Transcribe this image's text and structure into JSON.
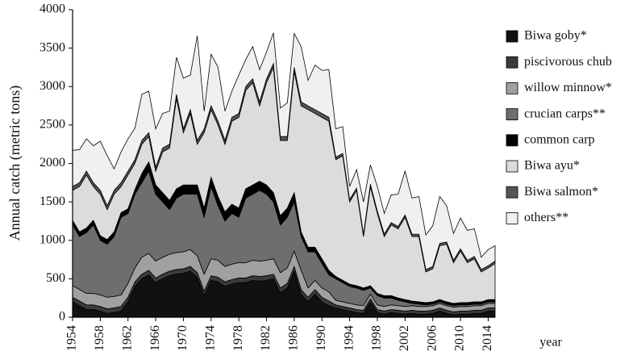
{
  "chart_data": {
    "type": "stacked-area",
    "y_label": "Annual catch (metric tons)",
    "x_label": "year",
    "x": [
      1954,
      1955,
      1956,
      1957,
      1958,
      1959,
      1960,
      1961,
      1962,
      1963,
      1964,
      1965,
      1966,
      1967,
      1968,
      1969,
      1970,
      1971,
      1972,
      1973,
      1974,
      1975,
      1976,
      1977,
      1978,
      1979,
      1980,
      1981,
      1982,
      1983,
      1984,
      1985,
      1986,
      1987,
      1988,
      1989,
      1990,
      1991,
      1992,
      1993,
      1994,
      1995,
      1996,
      1997,
      1998,
      1999,
      2000,
      2001,
      2002,
      2003,
      2004,
      2005,
      2006,
      2007,
      2008,
      2009,
      2010,
      2011,
      2012,
      2013,
      2014,
      2015
    ],
    "xlim": [
      1954,
      2015
    ],
    "xticks": [
      1954,
      1958,
      1962,
      1966,
      1970,
      1974,
      1978,
      1982,
      1986,
      1990,
      1994,
      1998,
      2002,
      2006,
      2010,
      2014
    ],
    "ylim": [
      0,
      4000
    ],
    "yticks": [
      0,
      500,
      1000,
      1500,
      2000,
      2500,
      3000,
      3500,
      4000
    ],
    "legend": "right",
    "series": [
      {
        "name": "Biwa goby*",
        "color": "#111111",
        "values": [
          200,
          150,
          100,
          100,
          80,
          50,
          60,
          80,
          200,
          400,
          500,
          550,
          450,
          500,
          540,
          560,
          570,
          600,
          520,
          280,
          480,
          460,
          400,
          430,
          450,
          450,
          480,
          470,
          480,
          500,
          320,
          380,
          600,
          300,
          200,
          300,
          200,
          150,
          120,
          100,
          80,
          60,
          50,
          200,
          60,
          40,
          60,
          50,
          40,
          50,
          40,
          40,
          50,
          80,
          50,
          30,
          40,
          40,
          50,
          50,
          80,
          80
        ]
      },
      {
        "name": "piscivorous chub",
        "color": "#3a3a3a",
        "values": [
          60,
          60,
          60,
          60,
          60,
          60,
          60,
          60,
          60,
          60,
          60,
          60,
          60,
          60,
          60,
          60,
          60,
          60,
          60,
          60,
          60,
          60,
          60,
          60,
          60,
          60,
          60,
          60,
          60,
          60,
          60,
          60,
          60,
          60,
          60,
          60,
          60,
          60,
          40,
          40,
          40,
          40,
          40,
          40,
          40,
          40,
          40,
          40,
          40,
          40,
          40,
          40,
          40,
          40,
          40,
          40,
          40,
          40,
          40,
          40,
          40,
          40
        ]
      },
      {
        "name": "willow minnow*",
        "color": "#a0a0a0",
        "values": [
          150,
          150,
          150,
          150,
          150,
          150,
          150,
          150,
          180,
          180,
          220,
          220,
          220,
          220,
          220,
          220,
          220,
          220,
          220,
          220,
          220,
          220,
          200,
          200,
          200,
          200,
          200,
          200,
          200,
          200,
          200,
          200,
          200,
          250,
          120,
          120,
          120,
          120,
          60,
          60,
          60,
          60,
          60,
          60,
          60,
          60,
          60,
          60,
          60,
          60,
          60,
          60,
          60,
          60,
          60,
          60,
          60,
          60,
          60,
          60,
          60,
          60
        ]
      },
      {
        "name": "crucian carps**",
        "color": "#6e6e6e",
        "values": [
          790,
          690,
          790,
          890,
          710,
          690,
          780,
          1010,
          910,
          960,
          970,
          1070,
          870,
          720,
          580,
          710,
          750,
          720,
          800,
          740,
          940,
          710,
          590,
          660,
          590,
          840,
          860,
          920,
          860,
          740,
          620,
          660,
          640,
          440,
          470,
          370,
          320,
          220,
          280,
          250,
          220,
          220,
          200,
          80,
          120,
          110,
          90,
          70,
          60,
          30,
          30,
          20,
          20,
          20,
          20,
          20,
          20,
          20,
          20,
          20,
          20,
          20
        ]
      },
      {
        "name": "common carp",
        "color": "#000000",
        "values": [
          60,
          60,
          60,
          60,
          60,
          60,
          60,
          60,
          60,
          60,
          120,
          120,
          120,
          120,
          120,
          120,
          120,
          120,
          120,
          120,
          120,
          120,
          120,
          120,
          120,
          120,
          120,
          120,
          120,
          120,
          120,
          120,
          120,
          60,
          60,
          60,
          60,
          60,
          30,
          30,
          30,
          30,
          30,
          30,
          30,
          30,
          30,
          30,
          30,
          30,
          30,
          30,
          30,
          30,
          30,
          30,
          30,
          30,
          30,
          30,
          30,
          30
        ]
      },
      {
        "name": "Biwa ayu*",
        "color": "#dcdcdc",
        "values": [
          390,
          590,
          690,
          440,
          540,
          390,
          490,
          340,
          440,
          340,
          380,
          330,
          180,
          530,
          680,
          1180,
          680,
          930,
          530,
          980,
          880,
          930,
          880,
          1080,
          1180,
          1280,
          1330,
          980,
          1330,
          1630,
          980,
          880,
          1580,
          1640,
          1790,
          1740,
          1840,
          1940,
          1520,
          1620,
          1070,
          1240,
          670,
          1290,
          1040,
          770,
          920,
          900,
          1070,
          840,
          850,
          400,
          430,
          700,
          750,
          530,
          670,
          520,
          560,
          390,
          410,
          470
        ]
      },
      {
        "name": "Biwa salmon*",
        "color": "#555555",
        "values": [
          50,
          50,
          50,
          50,
          50,
          50,
          50,
          50,
          50,
          50,
          50,
          50,
          50,
          50,
          50,
          50,
          50,
          50,
          50,
          50,
          50,
          50,
          50,
          50,
          50,
          50,
          50,
          50,
          50,
          50,
          50,
          50,
          50,
          50,
          50,
          50,
          50,
          50,
          30,
          30,
          30,
          30,
          30,
          30,
          30,
          30,
          30,
          30,
          30,
          30,
          30,
          30,
          30,
          30,
          30,
          30,
          30,
          30,
          30,
          30,
          30,
          30
        ]
      },
      {
        "name": "others**",
        "color": "#f0f0f0",
        "values": [
          470,
          430,
          420,
          480,
          640,
          650,
          280,
          400,
          420,
          410,
          600,
          540,
          500,
          450,
          430,
          480,
          660,
          450,
          1360,
          230,
          670,
          700,
          380,
          340,
          500,
          350,
          420,
          420,
          350,
          400,
          370,
          440,
          440,
          720,
          330,
          580,
          560,
          620,
          370,
          350,
          170,
          240,
          420,
          250,
          320,
          270,
          360,
          420,
          570,
          470,
          490,
          450,
          530,
          610,
          470,
          350,
          400,
          390,
          360,
          160,
          210,
          200
        ]
      }
    ]
  }
}
